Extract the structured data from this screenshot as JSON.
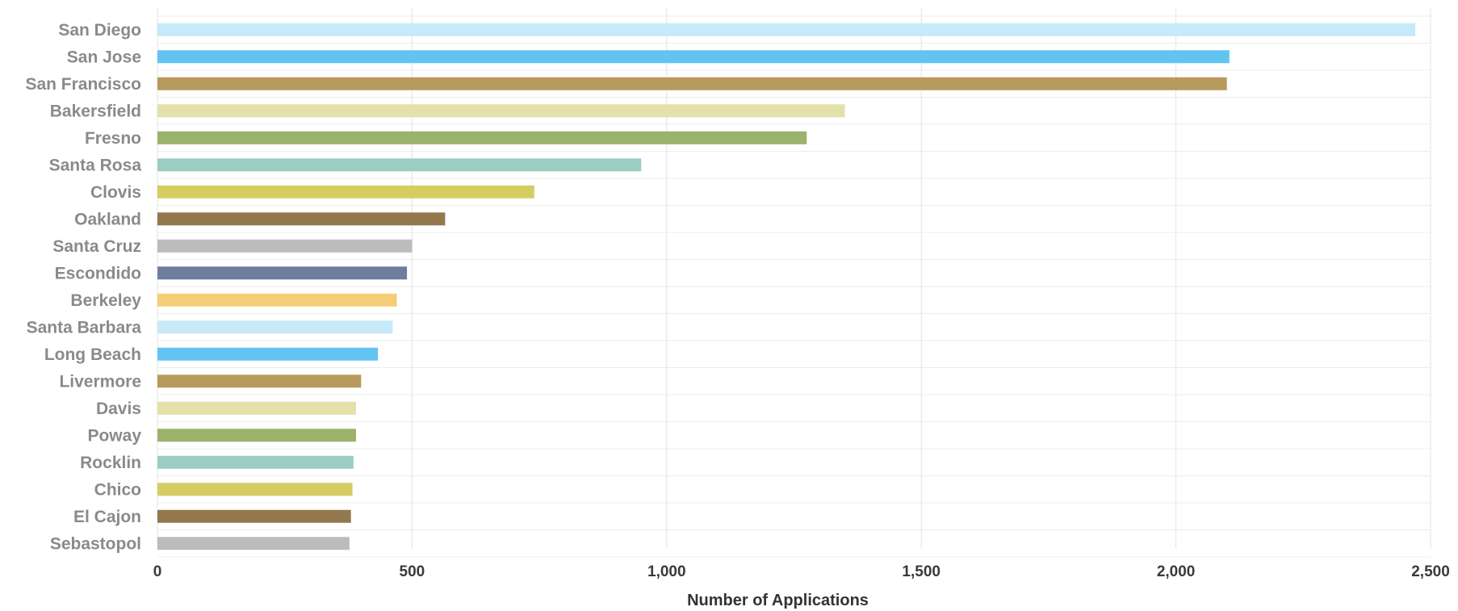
{
  "chart_data": {
    "type": "bar",
    "orientation": "horizontal",
    "xlabel": "Number of Applications",
    "ylabel": "",
    "xlim": [
      0,
      2500
    ],
    "xticks": [
      0,
      500,
      1000,
      1500,
      2000,
      2500
    ],
    "xtick_labels": [
      "0",
      "500",
      "1,000",
      "1,500",
      "2,000",
      "2,500"
    ],
    "grid": true,
    "categories": [
      "San Diego",
      "San Jose",
      "San Francisco",
      "Bakersfield",
      "Fresno",
      "Santa Rosa",
      "Clovis",
      "Oakland",
      "Santa Cruz",
      "Escondido",
      "Berkeley",
      "Santa Barbara",
      "Long Beach",
      "Livermore",
      "Davis",
      "Poway",
      "Rocklin",
      "Chico",
      "El Cajon",
      "Sebastopol"
    ],
    "values": [
      2470,
      2105,
      2100,
      1350,
      1275,
      950,
      740,
      565,
      500,
      490,
      470,
      462,
      433,
      400,
      390,
      390,
      385,
      383,
      380,
      377
    ],
    "colors": [
      "#c7e9f9",
      "#62c4f2",
      "#b79a5e",
      "#e4e1a8",
      "#9bb26b",
      "#9ccdc2",
      "#d6cd62",
      "#93784e",
      "#bcbcbc",
      "#6d7f9c",
      "#f5cd76",
      "#c7e9f9",
      "#62c4f2",
      "#b79a5e",
      "#e4e1a8",
      "#9bb26b",
      "#9ccdc2",
      "#d6cd62",
      "#93784e",
      "#bcbcbc"
    ]
  }
}
